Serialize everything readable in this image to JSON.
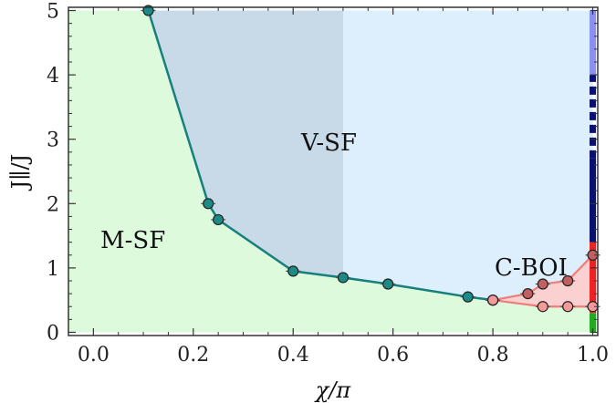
{
  "chart_data": {
    "type": "scatter",
    "title": "",
    "xlabel": "χ/π",
    "ylabel": "J∥/J",
    "xlim": [
      -0.05,
      1.01
    ],
    "ylim": [
      -0.05,
      5.05
    ],
    "x_ticks": [
      "0.0",
      "0.2",
      "0.4",
      "0.6",
      "0.8",
      "1.0"
    ],
    "y_ticks": [
      "0",
      "1",
      "2",
      "3",
      "4",
      "5"
    ],
    "grid": false,
    "region_labels": {
      "msf": "M-SF",
      "vsf": "V-SF",
      "cboi": "C-BOI"
    },
    "colors": {
      "msf_fill": "#ddfbdc",
      "vsf_fill": "#ddeefc",
      "vsf_dark_fill": "#c8d9e8",
      "cboi_fill": "#fbd0d0",
      "boundary_line": "#17807e",
      "boundary_marker": "#1c8a86",
      "cboi_line": "#f07c7c",
      "cboi_marker_upper": "#c06060",
      "cboi_marker_lower": "#f49a9a",
      "edge_light_blue": "#8a8ff0",
      "edge_navy": "#0a1070",
      "edge_red": "#ee2222",
      "edge_green": "#22aa22"
    },
    "series": [
      {
        "role": "msf-vsf-boundary",
        "x": [
          0.11,
          0.23,
          0.25,
          0.4,
          0.5,
          0.59,
          0.75,
          0.8
        ],
        "y": [
          5.0,
          2.0,
          1.75,
          0.95,
          0.85,
          0.75,
          0.55,
          0.5
        ]
      },
      {
        "role": "cboi-upper-boundary",
        "x": [
          0.8,
          0.87,
          0.9,
          0.95,
          1.0
        ],
        "y": [
          0.5,
          0.6,
          0.75,
          0.8,
          1.2
        ]
      },
      {
        "role": "cboi-lower-boundary",
        "x": [
          0.8,
          0.9,
          0.95,
          1.0
        ],
        "y": [
          0.5,
          0.4,
          0.4,
          0.4
        ]
      }
    ],
    "vsf_dark_region_xmax": 0.5,
    "edge_segments": [
      {
        "color_key": "edge_green",
        "y0": 0.0,
        "y1": 0.3,
        "dashed": false
      },
      {
        "color_key": "edge_red",
        "y0": 0.3,
        "y1": 1.4,
        "dashed": false
      },
      {
        "color_key": "edge_navy",
        "y0": 1.4,
        "y1": 2.7,
        "dashed": false
      },
      {
        "color_key": "edge_navy",
        "y0": 2.7,
        "y1": 4.0,
        "dashed": true
      },
      {
        "color_key": "edge_light_blue",
        "y0": 4.0,
        "y1": 5.0,
        "dashed": false
      }
    ]
  }
}
